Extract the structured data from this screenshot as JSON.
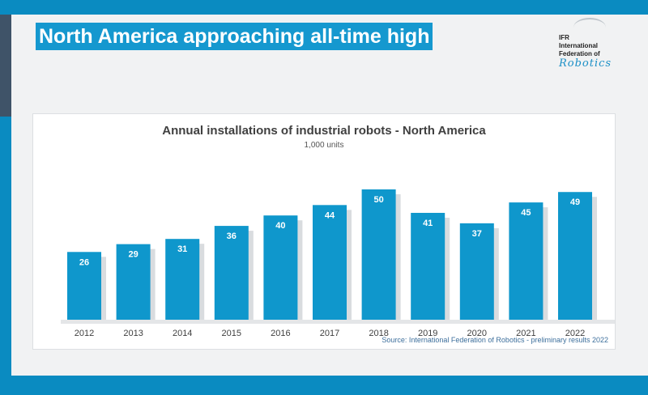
{
  "slide": {
    "title": "North America approaching all-time high",
    "logo_lines": [
      "IFR",
      "International",
      "Federation of"
    ],
    "logo_script": "Robotics"
  },
  "chart_data": {
    "type": "bar",
    "title": "Annual installations of industrial robots - North America",
    "subtitle": "1,000 units",
    "source": "Source: International Federation of Robotics - preliminary results 2022",
    "categories": [
      "2012",
      "2013",
      "2014",
      "2015",
      "2016",
      "2017",
      "2018",
      "2019",
      "2020",
      "2021",
      "2022"
    ],
    "values": [
      26,
      29,
      31,
      36,
      40,
      44,
      50,
      41,
      37,
      45,
      49
    ],
    "data_labels": [
      "26",
      "29",
      "31",
      "36",
      "40",
      "44",
      "50",
      "41",
      "37",
      "45",
      "49"
    ],
    "bar_color": "#0f97cc",
    "label_color": "#ffffff",
    "grid": false,
    "legend": "none"
  },
  "colors": {
    "frame": "#0a8bc1",
    "title_highlight": "#1598cf",
    "side_accent": "#3f5368"
  }
}
